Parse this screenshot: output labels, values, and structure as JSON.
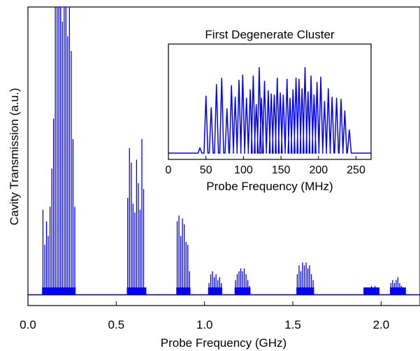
{
  "chart_data": [
    {
      "type": "line",
      "title": "",
      "xlabel": "Probe Frequency (GHz)",
      "ylabel": "Cavity Transmission (a.u.)",
      "xlim": [
        0.0,
        2.22
      ],
      "ylim": [
        0,
        1
      ],
      "x_ticks": [
        "0.0",
        "0.5",
        "1.0",
        "1.5",
        "2.0"
      ],
      "y_ticks": [],
      "grid": false,
      "series": [
        {
          "color": "#0000ff",
          "baseline": 0.02,
          "clusters": [
            {
              "range": [
                0.08,
                0.27
              ],
              "peaks": [
                [
                  0.085,
                  0.31
                ],
                [
                  0.095,
                  0.19
                ],
                [
                  0.105,
                  0.27
                ],
                [
                  0.115,
                  0.22
                ],
                [
                  0.125,
                  0.32
                ],
                [
                  0.135,
                  0.45
                ],
                [
                  0.145,
                  0.62
                ],
                [
                  0.155,
                  1.0
                ],
                [
                  0.165,
                  1.0
                ],
                [
                  0.175,
                  1.0
                ],
                [
                  0.185,
                  1.0
                ],
                [
                  0.195,
                  0.95
                ],
                [
                  0.205,
                  1.0
                ],
                [
                  0.215,
                  1.0
                ],
                [
                  0.225,
                  0.9
                ],
                [
                  0.235,
                  1.0
                ],
                [
                  0.245,
                  0.85
                ],
                [
                  0.255,
                  0.55
                ],
                [
                  0.265,
                  0.32
                ]
              ]
            },
            {
              "range": [
                0.56,
                0.67
              ],
              "peaks": [
                [
                  0.565,
                  0.35
                ],
                [
                  0.575,
                  0.52
                ],
                [
                  0.585,
                  0.47
                ],
                [
                  0.595,
                  0.33
                ],
                [
                  0.605,
                  0.3
                ],
                [
                  0.615,
                  0.48
                ],
                [
                  0.625,
                  0.4
                ],
                [
                  0.635,
                  0.31
                ],
                [
                  0.645,
                  0.55
                ],
                [
                  0.655,
                  0.38
                ]
              ]
            },
            {
              "range": [
                0.84,
                0.92
              ],
              "peaks": [
                [
                  0.845,
                  0.27
                ],
                [
                  0.855,
                  0.29
                ],
                [
                  0.865,
                  0.22
                ],
                [
                  0.875,
                  0.28
                ],
                [
                  0.885,
                  0.26
                ],
                [
                  0.895,
                  0.2
                ],
                [
                  0.905,
                  0.19
                ],
                [
                  0.915,
                  0.1
                ]
              ]
            },
            {
              "range": [
                1.02,
                1.1
              ],
              "peaks": [
                [
                  1.025,
                  0.06
                ],
                [
                  1.035,
                  0.09
                ],
                [
                  1.045,
                  0.1
                ],
                [
                  1.055,
                  0.08
                ],
                [
                  1.065,
                  0.09
                ],
                [
                  1.075,
                  0.07
                ],
                [
                  1.085,
                  0.08
                ],
                [
                  1.095,
                  0.06
                ]
              ]
            },
            {
              "range": [
                1.17,
                1.26
              ],
              "peaks": [
                [
                  1.175,
                  0.07
                ],
                [
                  1.185,
                  0.09
                ],
                [
                  1.195,
                  0.1
                ],
                [
                  1.205,
                  0.11
                ],
                [
                  1.215,
                  0.1
                ],
                [
                  1.225,
                  0.11
                ],
                [
                  1.235,
                  0.09
                ],
                [
                  1.245,
                  0.07
                ],
                [
                  1.255,
                  0.05
                ]
              ]
            },
            {
              "range": [
                1.52,
                1.62
              ],
              "peaks": [
                [
                  1.525,
                  0.09
                ],
                [
                  1.535,
                  0.12
                ],
                [
                  1.545,
                  0.1
                ],
                [
                  1.555,
                  0.13
                ],
                [
                  1.565,
                  0.12
                ],
                [
                  1.575,
                  0.13
                ],
                [
                  1.585,
                  0.11
                ],
                [
                  1.595,
                  0.12
                ],
                [
                  1.605,
                  0.09
                ],
                [
                  1.615,
                  0.07
                ]
              ]
            },
            {
              "range": [
                1.9,
                1.99
              ],
              "peaks": [
                [
                  1.905,
                  0.03
                ],
                [
                  1.915,
                  0.04
                ],
                [
                  1.925,
                  0.03
                ],
                [
                  1.935,
                  0.04
                ],
                [
                  1.945,
                  0.05
                ],
                [
                  1.955,
                  0.04
                ],
                [
                  1.965,
                  0.05
                ],
                [
                  1.975,
                  0.03
                ],
                [
                  1.985,
                  0.03
                ]
              ]
            },
            {
              "range": [
                2.05,
                2.14
              ],
              "peaks": [
                [
                  2.055,
                  0.06
                ],
                [
                  2.065,
                  0.07
                ],
                [
                  2.075,
                  0.06
                ],
                [
                  2.085,
                  0.07
                ],
                [
                  2.095,
                  0.08
                ],
                [
                  2.105,
                  0.06
                ],
                [
                  2.115,
                  0.05
                ],
                [
                  2.125,
                  0.04
                ],
                [
                  2.135,
                  0.03
                ]
              ]
            }
          ]
        }
      ]
    },
    {
      "type": "line",
      "title": "First Degenerate Cluster",
      "xlabel": "Probe Frequency (MHz)",
      "ylabel": "",
      "xlim": [
        0,
        270
      ],
      "ylim": [
        0,
        1
      ],
      "x_ticks": [
        "0",
        "50",
        "100",
        "150",
        "200",
        "250"
      ],
      "y_ticks": [],
      "grid": false,
      "series": [
        {
          "color": "#0000ff",
          "baseline": 0.02,
          "peaks": [
            [
              42,
              0.07
            ],
            [
              50,
              0.56
            ],
            [
              57,
              0.45
            ],
            [
              64,
              0.67
            ],
            [
              71,
              0.73
            ],
            [
              78,
              0.44
            ],
            [
              84,
              0.66
            ],
            [
              89,
              0.55
            ],
            [
              94,
              0.71
            ],
            [
              99,
              0.76
            ],
            [
              104,
              0.54
            ],
            [
              109,
              0.62
            ],
            [
              113,
              0.75
            ],
            [
              117,
              0.48
            ],
            [
              121,
              0.83
            ],
            [
              124,
              0.54
            ],
            [
              128,
              0.7
            ],
            [
              133,
              0.61
            ],
            [
              137,
              0.58
            ],
            [
              141,
              0.57
            ],
            [
              145,
              0.73
            ],
            [
              149,
              0.59
            ],
            [
              153,
              0.57
            ],
            [
              158,
              0.72
            ],
            [
              162,
              0.54
            ],
            [
              166,
              0.62
            ],
            [
              170,
              0.73
            ],
            [
              174,
              0.72
            ],
            [
              178,
              0.63
            ],
            [
              182,
              0.83
            ],
            [
              186,
              0.6
            ],
            [
              190,
              0.75
            ],
            [
              194,
              0.57
            ],
            [
              198,
              0.69
            ],
            [
              203,
              0.74
            ],
            [
              208,
              0.51
            ],
            [
              213,
              0.63
            ],
            [
              218,
              0.55
            ],
            [
              224,
              0.54
            ],
            [
              230,
              0.53
            ],
            [
              235,
              0.42
            ],
            [
              241,
              0.24
            ]
          ]
        }
      ]
    }
  ]
}
